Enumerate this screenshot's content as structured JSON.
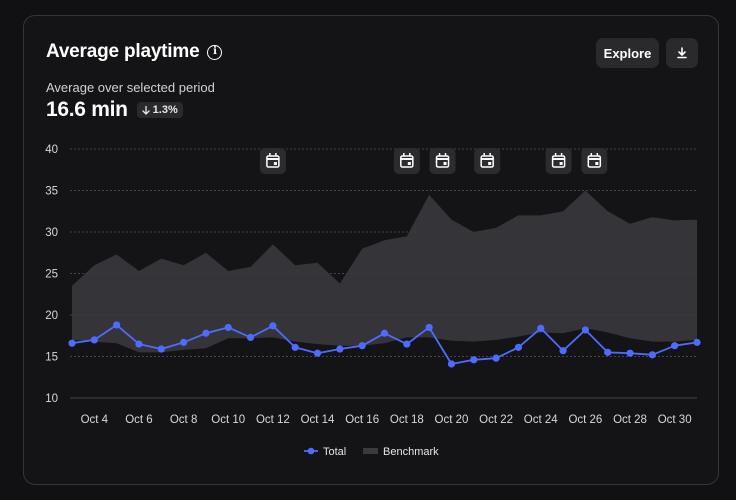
{
  "card": {
    "title": "Average playtime",
    "subtitle": "Average over selected period",
    "metric_value": "16.6 min",
    "delta": "1.3%",
    "explore_label": "Explore",
    "info_icon": "info-icon",
    "download_icon": "download-icon",
    "delta_icon": "arrow-down-icon"
  },
  "chart_data": {
    "type": "line",
    "ylim": [
      10,
      40
    ],
    "y_ticks": [
      "10",
      "15",
      "20",
      "25",
      "30",
      "35",
      "40"
    ],
    "y_tick_values": [
      10,
      15,
      20,
      25,
      30,
      35,
      40
    ],
    "x_start_day": 3,
    "x_end_day": 31,
    "x_ticks": [
      "Oct 4",
      "Oct 6",
      "Oct 8",
      "Oct 10",
      "Oct 12",
      "Oct 14",
      "Oct 16",
      "Oct 18",
      "Oct 20",
      "Oct 22",
      "Oct 24",
      "Oct 26",
      "Oct 28",
      "Oct 30"
    ],
    "x_tick_days": [
      4,
      6,
      8,
      10,
      12,
      14,
      16,
      18,
      20,
      22,
      24,
      26,
      28,
      30
    ],
    "grid": true,
    "legend_position": "bottom-center",
    "series": [
      {
        "name": "Total",
        "color": "#4f6bff",
        "x": [
          3,
          4,
          5,
          6,
          7,
          8,
          9,
          10,
          11,
          12,
          13,
          14,
          15,
          16,
          17,
          18,
          19,
          20,
          21,
          22,
          23,
          24,
          25,
          26,
          27,
          28,
          29,
          30,
          31
        ],
        "values": [
          16.6,
          17.0,
          18.8,
          16.5,
          15.9,
          16.7,
          17.8,
          18.5,
          17.3,
          18.7,
          16.1,
          15.4,
          15.9,
          16.3,
          17.8,
          16.5,
          18.5,
          14.1,
          14.6,
          14.8,
          16.1,
          18.4,
          15.7,
          18.2,
          15.5,
          15.4,
          15.2,
          16.3,
          16.7
        ]
      },
      {
        "name": "Benchmark",
        "color": "#3a3a3f",
        "x": [
          3,
          4,
          5,
          6,
          7,
          8,
          9,
          10,
          11,
          12,
          13,
          14,
          15,
          16,
          17,
          18,
          19,
          20,
          21,
          22,
          23,
          24,
          25,
          26,
          27,
          28,
          29,
          30,
          31
        ],
        "upper": [
          23.5,
          26.0,
          27.3,
          25.3,
          26.8,
          26.0,
          27.5,
          25.3,
          25.8,
          28.5,
          26.0,
          26.3,
          23.8,
          28.0,
          29.0,
          29.5,
          34.5,
          31.5,
          30.0,
          30.5,
          32.0,
          32.0,
          32.5,
          35.0,
          32.5,
          31.0,
          31.8,
          31.4,
          31.5
        ],
        "lower": [
          17.0,
          16.8,
          16.6,
          15.5,
          15.5,
          15.8,
          16.0,
          17.2,
          17.2,
          17.3,
          16.8,
          16.5,
          16.3,
          16.3,
          16.6,
          17.3,
          17.3,
          16.9,
          16.8,
          17.0,
          17.4,
          17.9,
          17.8,
          18.4,
          17.9,
          17.2,
          16.8,
          16.8,
          17.0
        ]
      }
    ],
    "event_markers_days": [
      12,
      18,
      19.6,
      21.6,
      24.8,
      26.4
    ],
    "event_icon": "calendar-icon"
  }
}
